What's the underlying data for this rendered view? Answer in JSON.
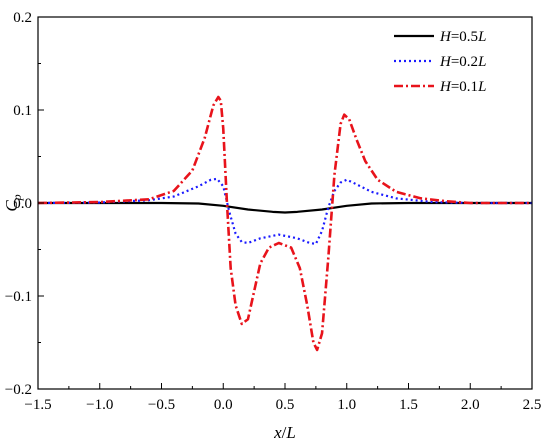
{
  "chart_data": {
    "type": "line",
    "title": "",
    "xlabel": {
      "var": "x",
      "sep": "/",
      "unit": "L"
    },
    "ylabel": {
      "main": "C",
      "sub": "p"
    },
    "xlim": [
      -1.5,
      2.5
    ],
    "ylim": [
      -0.2,
      0.2
    ],
    "xticks": [
      -1.5,
      -1.0,
      -0.5,
      0.0,
      0.5,
      1.0,
      1.5,
      2.0,
      2.5
    ],
    "xtick_labels": [
      "−1.5",
      "−1.0",
      "−0.5",
      "0.0",
      "0.5",
      "1.0",
      "1.5",
      "2.0",
      "2.5"
    ],
    "yticks": [
      -0.2,
      -0.1,
      0.0,
      0.1,
      0.2
    ],
    "ytick_labels": [
      "−0.2",
      "−0.1",
      "0.0",
      "0.1",
      "0.2"
    ],
    "grid": false,
    "legend_position": "top-right",
    "series": [
      {
        "name": "H=0.5L",
        "legend": {
          "a": "H",
          "b": "=0.5",
          "c": "L"
        },
        "color": "#000000",
        "style": "solid",
        "x": [
          -1.5,
          -1.0,
          -0.5,
          -0.2,
          0.0,
          0.2,
          0.4,
          0.5,
          0.6,
          0.8,
          1.0,
          1.2,
          1.5,
          2.0,
          2.5
        ],
        "y": [
          0.0,
          0.0,
          0.0,
          -0.0005,
          -0.003,
          -0.007,
          -0.0095,
          -0.0102,
          -0.0095,
          -0.007,
          -0.003,
          -0.0005,
          0.0,
          0.0,
          0.0
        ]
      },
      {
        "name": "H=0.2L",
        "legend": {
          "a": "H",
          "b": "=0.2",
          "c": "L"
        },
        "color": "#1a1aff",
        "style": "dotted",
        "x": [
          -1.5,
          -1.0,
          -0.6,
          -0.4,
          -0.2,
          -0.1,
          -0.05,
          0.0,
          0.05,
          0.1,
          0.15,
          0.2,
          0.3,
          0.45,
          0.6,
          0.7,
          0.75,
          0.8,
          0.85,
          0.9,
          0.95,
          1.0,
          1.05,
          1.2,
          1.4,
          1.7,
          2.0,
          2.5
        ],
        "y": [
          0.0,
          0.0005,
          0.003,
          0.007,
          0.018,
          0.025,
          0.026,
          0.018,
          -0.01,
          -0.033,
          -0.042,
          -0.043,
          -0.038,
          -0.034,
          -0.038,
          -0.043,
          -0.044,
          -0.03,
          -0.005,
          0.013,
          0.022,
          0.025,
          0.022,
          0.012,
          0.005,
          0.001,
          0.0,
          0.0
        ]
      },
      {
        "name": "H=0.1L",
        "legend": {
          "a": "H",
          "b": "=0.1",
          "c": "L"
        },
        "color": "#e8131b",
        "style": "dashdot",
        "x": [
          -1.5,
          -1.0,
          -0.6,
          -0.4,
          -0.25,
          -0.15,
          -0.08,
          -0.04,
          -0.02,
          0.0,
          0.03,
          0.06,
          0.1,
          0.15,
          0.2,
          0.25,
          0.3,
          0.37,
          0.45,
          0.55,
          0.62,
          0.68,
          0.73,
          0.76,
          0.8,
          0.85,
          0.9,
          0.95,
          0.98,
          1.02,
          1.08,
          1.15,
          1.25,
          1.4,
          1.6,
          1.8,
          2.0,
          2.5
        ],
        "y": [
          0.0,
          0.001,
          0.004,
          0.013,
          0.035,
          0.07,
          0.105,
          0.114,
          0.11,
          0.08,
          0.0,
          -0.07,
          -0.11,
          -0.13,
          -0.125,
          -0.095,
          -0.065,
          -0.048,
          -0.043,
          -0.048,
          -0.07,
          -0.11,
          -0.15,
          -0.158,
          -0.14,
          -0.06,
          0.03,
          0.085,
          0.095,
          0.09,
          0.068,
          0.045,
          0.025,
          0.012,
          0.005,
          0.002,
          0.0,
          0.0
        ]
      }
    ]
  }
}
